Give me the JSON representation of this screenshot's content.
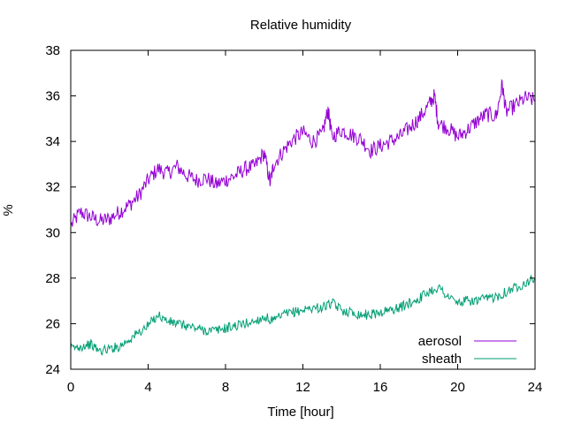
{
  "chart_data": {
    "type": "line",
    "title": "Relative humidity",
    "xlabel": "Time [hour]",
    "ylabel": "%",
    "xlim": [
      0,
      24
    ],
    "ylim": [
      24,
      38
    ],
    "xticks": [
      0,
      4,
      8,
      12,
      16,
      20,
      24
    ],
    "yticks": [
      24,
      26,
      28,
      30,
      32,
      34,
      36,
      38
    ],
    "grid": false,
    "legend_position": "bottom-right",
    "series": [
      {
        "name": "aerosol",
        "color": "#9400d3",
        "x": [
          0,
          0.5,
          1,
          1.5,
          2,
          2.5,
          3,
          3.5,
          4,
          4.5,
          5,
          5.5,
          6,
          6.5,
          7,
          7.5,
          8,
          8.5,
          9,
          9.5,
          10,
          10.3,
          10.5,
          11,
          11.5,
          12,
          12.5,
          13,
          13.3,
          13.5,
          14,
          14.5,
          15,
          15.5,
          16,
          16.5,
          17,
          17.5,
          18,
          18.5,
          18.8,
          19,
          19.5,
          20,
          20.5,
          21,
          21.5,
          22,
          22.3,
          22.5,
          23,
          23.5,
          24
        ],
        "y": [
          30.3,
          30.9,
          30.7,
          30.5,
          30.6,
          30.9,
          31.2,
          31.6,
          32.3,
          32.8,
          32.6,
          32.9,
          32.5,
          32.3,
          32.4,
          32.1,
          32.3,
          32.5,
          32.8,
          32.9,
          33.5,
          32.2,
          33.0,
          33.6,
          34.1,
          34.4,
          34.0,
          34.3,
          35.4,
          34.2,
          34.5,
          34.3,
          34.1,
          33.6,
          33.8,
          34.0,
          34.2,
          34.6,
          35.0,
          35.6,
          36.0,
          34.8,
          34.6,
          34.2,
          34.5,
          34.9,
          35.2,
          35.1,
          36.5,
          35.3,
          35.6,
          35.9,
          35.8
        ]
      },
      {
        "name": "sheath",
        "color": "#009e73",
        "x": [
          0,
          0.5,
          1,
          1.5,
          2,
          2.5,
          3,
          3.5,
          4,
          4.5,
          5,
          5.5,
          6,
          6.5,
          7,
          7.5,
          8,
          8.5,
          9,
          9.5,
          10,
          10.5,
          11,
          11.5,
          12,
          12.5,
          13,
          13.5,
          14,
          14.5,
          15,
          15.5,
          16,
          16.5,
          17,
          17.5,
          18,
          18.5,
          19,
          19.5,
          20,
          20.5,
          21,
          21.5,
          22,
          22.5,
          23,
          23.5,
          24
        ],
        "y": [
          24.9,
          25.0,
          25.1,
          24.8,
          24.9,
          25.0,
          25.3,
          25.6,
          25.9,
          26.4,
          26.1,
          26.0,
          25.9,
          25.8,
          25.7,
          25.7,
          25.8,
          25.9,
          26.0,
          26.1,
          26.3,
          26.1,
          26.4,
          26.5,
          26.6,
          26.7,
          26.7,
          26.9,
          26.6,
          26.5,
          26.4,
          26.4,
          26.5,
          26.6,
          26.7,
          26.9,
          27.1,
          27.4,
          27.6,
          27.2,
          26.9,
          27.0,
          27.0,
          27.1,
          27.2,
          27.4,
          27.6,
          27.8,
          28.0
        ]
      }
    ]
  }
}
